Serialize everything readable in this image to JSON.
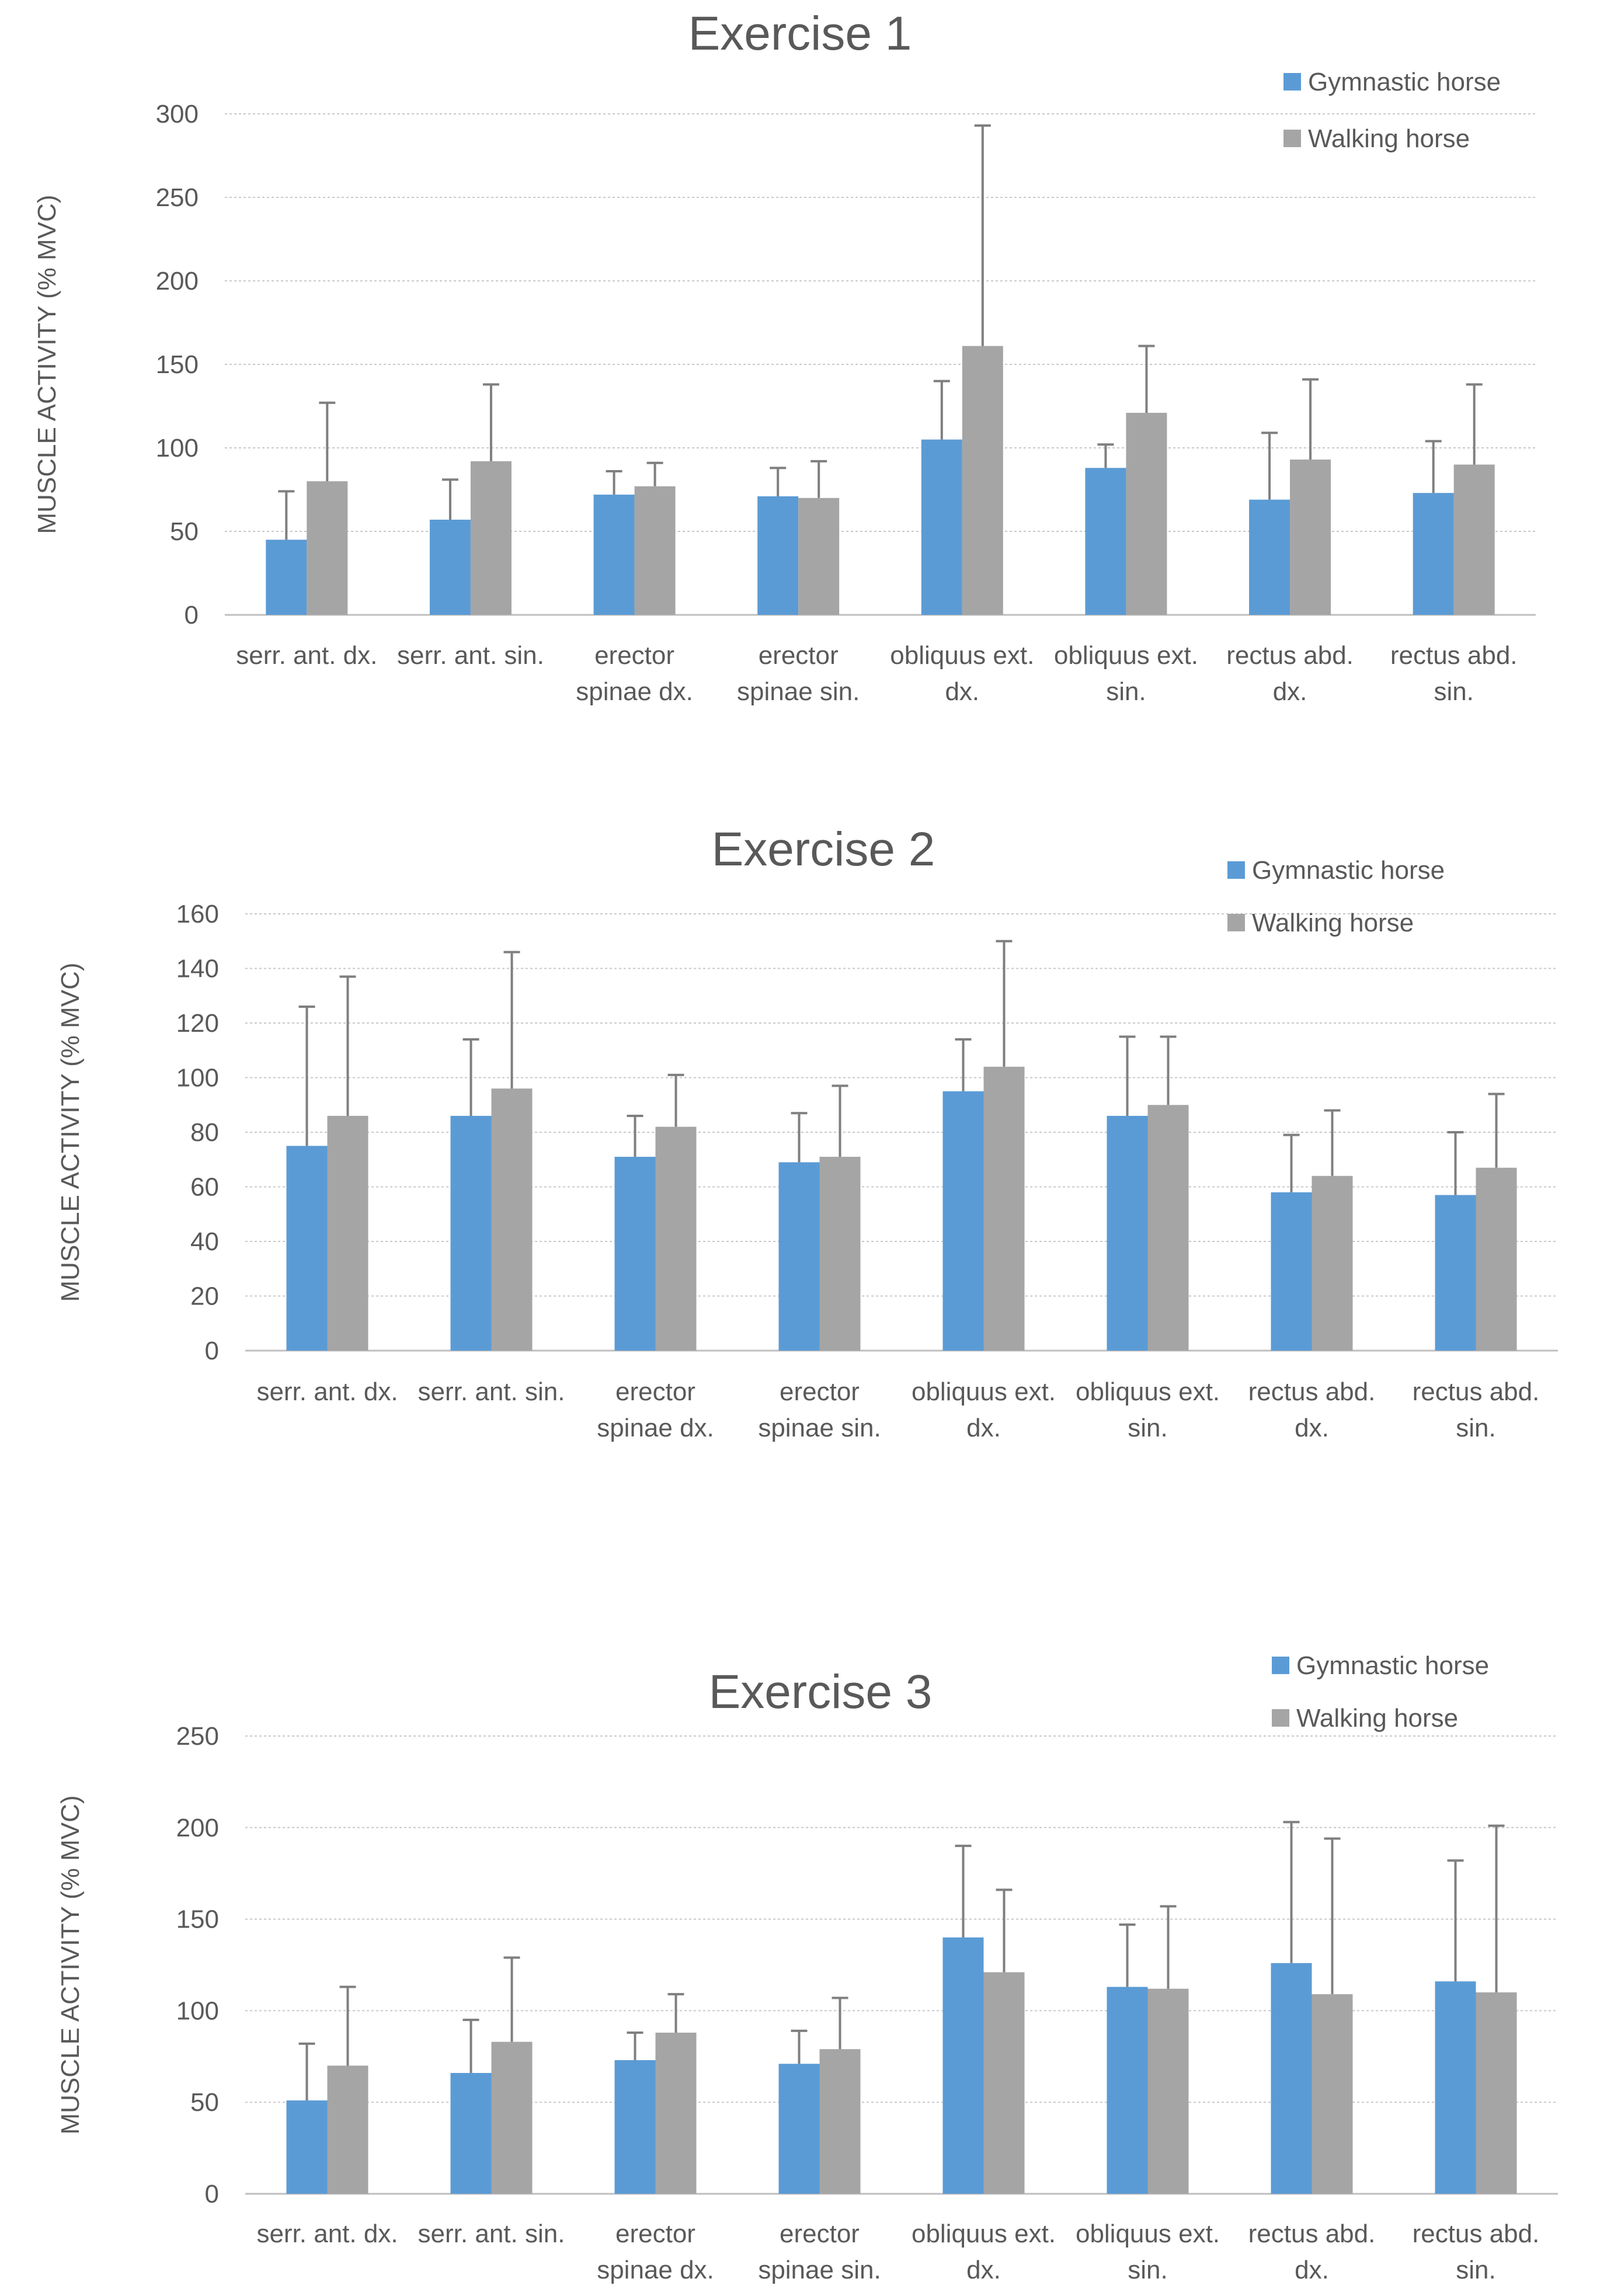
{
  "colors": {
    "gymnastic": "#5b9bd5",
    "walking": "#a5a5a5",
    "error_bar": "#7f7f7f",
    "text": "#595959",
    "grid": "#c8c8c8"
  },
  "chart_data": [
    {
      "type": "bar",
      "title": "Exercise 1",
      "ylabel": "MUSCLE ACTIVITY (% MVC)",
      "xlabel": "",
      "ylim": [
        0,
        300
      ],
      "yticks": [
        "0",
        "50",
        "100",
        "150",
        "200",
        "250",
        "300"
      ],
      "categories": [
        [
          "serr. ant. dx."
        ],
        [
          "serr. ant. sin."
        ],
        [
          "erector",
          "spinae dx."
        ],
        [
          "erector",
          "spinae sin."
        ],
        [
          "obliquus ext.",
          "dx."
        ],
        [
          "obliquus ext.",
          "sin."
        ],
        [
          "rectus abd.",
          "dx."
        ],
        [
          "rectus abd.",
          "sin."
        ]
      ],
      "series": [
        {
          "name": "Gymnastic horse",
          "values": [
            45,
            57,
            72,
            71,
            105,
            88,
            69,
            73
          ],
          "errors": [
            29,
            24,
            14,
            17,
            35,
            14,
            40,
            31
          ]
        },
        {
          "name": "Walking horse",
          "values": [
            80,
            92,
            77,
            70,
            161,
            121,
            93,
            90
          ],
          "errors": [
            47,
            46,
            14,
            22,
            132,
            40,
            48,
            48
          ]
        }
      ],
      "legend": {
        "position": "top-right",
        "entries": [
          "Gymnastic horse",
          "Walking horse"
        ]
      }
    },
    {
      "type": "bar",
      "title": "Exercise 2",
      "ylabel": "MUSCLE ACTIVITY (% MVC)",
      "xlabel": "",
      "ylim": [
        0,
        160
      ],
      "yticks": [
        "0",
        "20",
        "40",
        "60",
        "80",
        "100",
        "120",
        "140",
        "160"
      ],
      "categories": [
        [
          "serr. ant. dx."
        ],
        [
          "serr. ant. sin."
        ],
        [
          "erector",
          "spinae dx."
        ],
        [
          "erector",
          "spinae sin."
        ],
        [
          "obliquus ext.",
          "dx."
        ],
        [
          "obliquus ext.",
          "sin."
        ],
        [
          "rectus abd.",
          "dx."
        ],
        [
          "rectus abd.",
          "sin."
        ]
      ],
      "series": [
        {
          "name": "Gymnastic horse",
          "values": [
            75,
            86,
            71,
            69,
            95,
            86,
            58,
            57
          ],
          "errors": [
            51,
            28,
            15,
            18,
            19,
            29,
            21,
            23
          ]
        },
        {
          "name": "Walking horse",
          "values": [
            86,
            96,
            82,
            71,
            104,
            90,
            64,
            67
          ],
          "errors": [
            51,
            50,
            19,
            26,
            46,
            25,
            24,
            27
          ]
        }
      ],
      "legend": {
        "position": "top-right",
        "entries": [
          "Gymnastic horse",
          "Walking horse"
        ]
      }
    },
    {
      "type": "bar",
      "title": "Exercise 3",
      "ylabel": "MUSCLE ACTIVITY (% MVC)",
      "xlabel": "",
      "ylim": [
        0,
        250
      ],
      "yticks": [
        "0",
        "50",
        "100",
        "150",
        "200",
        "250"
      ],
      "categories": [
        [
          "serr. ant. dx."
        ],
        [
          "serr. ant. sin."
        ],
        [
          "erector",
          "spinae dx."
        ],
        [
          "erector",
          "spinae sin."
        ],
        [
          "obliquus ext.",
          "dx."
        ],
        [
          "obliquus ext.",
          "sin."
        ],
        [
          "rectus abd.",
          "dx."
        ],
        [
          "rectus abd.",
          "sin."
        ]
      ],
      "series": [
        {
          "name": "Gymnastic horse",
          "values": [
            51,
            66,
            73,
            71,
            140,
            113,
            126,
            116
          ],
          "errors": [
            31,
            29,
            15,
            18,
            50,
            34,
            77,
            66
          ]
        },
        {
          "name": "Walking horse",
          "values": [
            70,
            83,
            88,
            79,
            121,
            112,
            109,
            110
          ],
          "errors": [
            43,
            46,
            21,
            28,
            45,
            45,
            85,
            91
          ]
        }
      ],
      "legend": {
        "position": "top-right",
        "entries": [
          "Gymnastic horse",
          "Walking horse"
        ]
      }
    }
  ]
}
